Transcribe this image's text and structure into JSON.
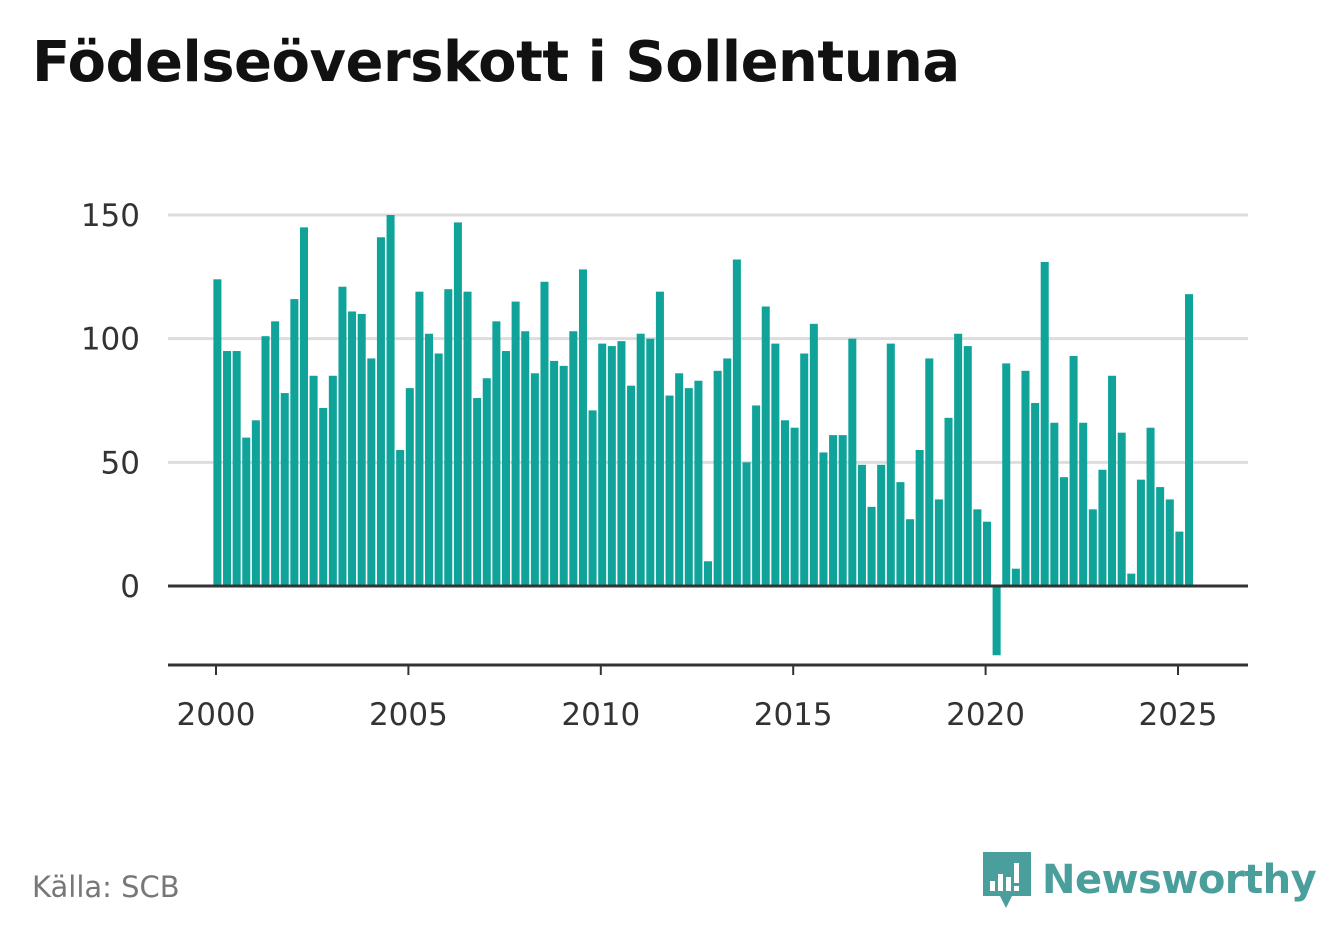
{
  "title": "Födelseöverskott i Sollentuna",
  "source": "Källa: SCB",
  "brand": {
    "name": "Newsworthy",
    "logo_icon": "newsworthy-logo-icon"
  },
  "colors": {
    "bar": "#0fa39a",
    "brand": "#4a9e9b",
    "grid": "#dddddd",
    "axis": "#333333"
  },
  "chart_data": {
    "type": "bar",
    "granularity": "quarter",
    "start": [
      2000,
      1
    ],
    "ylim": [
      -28,
      150
    ],
    "y_ticks": [
      0,
      50,
      100,
      150
    ],
    "x_ticks": [
      2000,
      2005,
      2010,
      2015,
      2020,
      2025
    ],
    "grid": true,
    "values": [
      124,
      95,
      95,
      60,
      67,
      101,
      107,
      78,
      116,
      145,
      85,
      72,
      85,
      121,
      111,
      110,
      92,
      141,
      150,
      55,
      80,
      119,
      102,
      94,
      120,
      147,
      119,
      76,
      84,
      107,
      95,
      115,
      103,
      86,
      123,
      91,
      89,
      103,
      128,
      71,
      98,
      97,
      99,
      81,
      102,
      100,
      119,
      77,
      86,
      80,
      83,
      10,
      87,
      92,
      132,
      50,
      73,
      113,
      98,
      67,
      64,
      94,
      106,
      54,
      61,
      61,
      100,
      49,
      32,
      49,
      98,
      42,
      27,
      55,
      92,
      35,
      68,
      102,
      97,
      31,
      26,
      -28,
      90,
      7,
      87,
      74,
      131,
      66,
      44,
      93,
      66,
      31,
      47,
      85,
      62,
      5,
      43,
      64,
      40,
      35,
      22,
      118
    ]
  }
}
